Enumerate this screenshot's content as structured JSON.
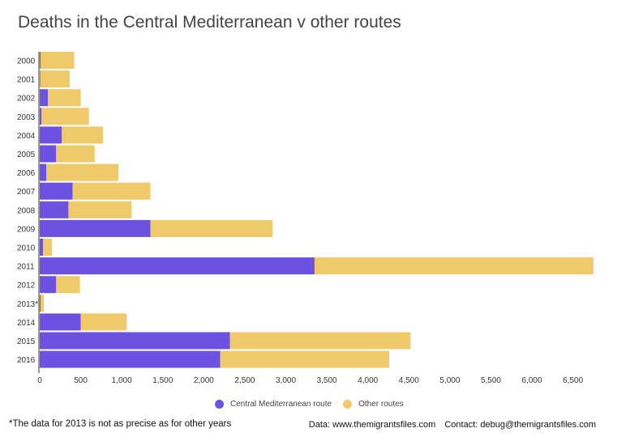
{
  "chart_data": {
    "type": "bar",
    "orientation": "horizontal",
    "stacked": true,
    "title": "Deaths in the Central Mediterranean v other routes",
    "categories": [
      "2000",
      "2001",
      "2002",
      "2003",
      "2004",
      "2005",
      "2006",
      "2007",
      "2008",
      "2009",
      "2010",
      "2011",
      "2012",
      "2013*",
      "2014",
      "2015",
      "2016"
    ],
    "series": [
      {
        "name": "Central Mediterranean route",
        "color": "#6c52e0",
        "values": [
          10,
          5,
          100,
          20,
          270,
          200,
          80,
          400,
          350,
          1350,
          40,
          3350,
          200,
          10,
          500,
          2320,
          2200
        ]
      },
      {
        "name": "Other routes",
        "color": "#f0c96a",
        "values": [
          410,
          360,
          400,
          580,
          500,
          470,
          880,
          950,
          770,
          1490,
          110,
          3400,
          290,
          40,
          560,
          2200,
          2060
        ]
      }
    ],
    "xlim": [
      0,
      6800
    ],
    "xticks": [
      0,
      500,
      1000,
      1500,
      2000,
      2500,
      3000,
      3500,
      4000,
      4500,
      5000,
      5500,
      6000,
      6500
    ],
    "xtick_labels": [
      "0",
      "500",
      "1,000",
      "1,500",
      "2,000",
      "2,500",
      "3,000",
      "3,500",
      "4,000",
      "4,500",
      "5,000",
      "5,500",
      "6,000",
      "6,500"
    ],
    "xlabel": "",
    "ylabel": "",
    "legend_position": "bottom"
  },
  "footnote": "*The data for 2013 is not as precise as for other years",
  "credits": {
    "data": "Data: www.themigrantsfiles.com",
    "contact": "Contact: debug@themigrantsfiles.com"
  },
  "legend": {
    "items": [
      {
        "label": "Central Mediterranean route",
        "color": "#6c52e0"
      },
      {
        "label": "Other routes",
        "color": "#f0c96a"
      }
    ]
  }
}
